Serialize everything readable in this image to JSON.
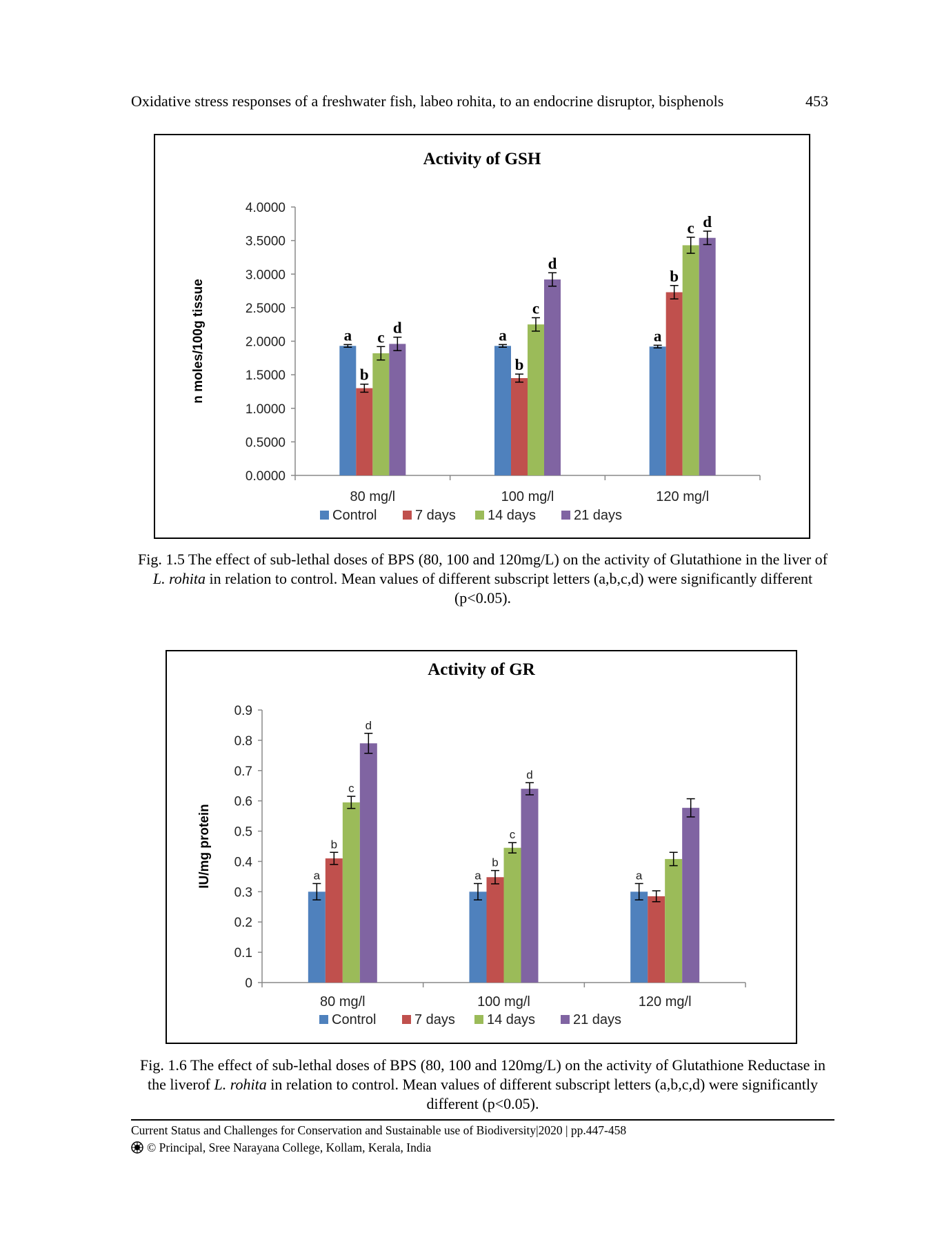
{
  "header": {
    "running_title": "Oxidative stress responses of a freshwater fish, labeo rohita, to an endocrine disruptor, bisphenols",
    "page_number": "453"
  },
  "figures": [
    {
      "caption_parts": [
        "Fig. 1.5 The effect of sub-lethal doses of BPS (80, 100 and 120mg/L) on the activity of Glutathione in the liver of ",
        "L. rohita",
        " in relation to control. Mean values of different subscript letters (a,b,c,d) were significantly different (p<0.05)."
      ]
    },
    {
      "caption_parts": [
        "Fig. 1.6  The effect of sub-lethal doses of BPS (80, 100 and 120mg/L) on the activity of Glutathione Reductase in the liverof ",
        "L. rohita",
        " in relation to control. Mean values of different subscript letters (a,b,c,d) were significantly different (p<0.05)."
      ]
    }
  ],
  "footer": {
    "line1": "Current Status and Challenges for Conservation and Sustainable use of Biodiversity|2020 | pp.447-458",
    "line2": "© Principal, Sree Narayana College, Kollam, Kerala, India",
    "emblem_icon": "college-emblem-icon"
  },
  "chart_data": [
    {
      "type": "bar",
      "title": "Activity of GSH",
      "xlabel": "",
      "ylabel": "n moles/100g tissue",
      "categories": [
        "80 mg/l",
        "100 mg/l",
        "120 mg/l"
      ],
      "ylim": [
        0,
        4
      ],
      "yticks": [
        "0.0000",
        "0.5000",
        "1.0000",
        "1.5000",
        "2.0000",
        "2.5000",
        "3.0000",
        "3.5000",
        "4.0000"
      ],
      "grid": false,
      "legend": "bottom",
      "series": [
        {
          "name": "Control",
          "color": "#4F81BD",
          "values": [
            1.93,
            1.93,
            1.92
          ],
          "errors": [
            0.02,
            0.02,
            0.02
          ],
          "letters": [
            "a",
            "a",
            "a"
          ]
        },
        {
          "name": "7 days",
          "color": "#C0504D",
          "values": [
            1.3,
            1.45,
            2.73
          ],
          "errors": [
            0.06,
            0.06,
            0.1
          ],
          "letters": [
            "b",
            "b",
            "b"
          ]
        },
        {
          "name": "14 days",
          "color": "#9BBB59",
          "values": [
            1.82,
            2.25,
            3.43
          ],
          "errors": [
            0.1,
            0.1,
            0.12
          ],
          "letters": [
            "c",
            "c",
            "c"
          ]
        },
        {
          "name": "21 days",
          "color": "#8064A2",
          "values": [
            1.96,
            2.92,
            3.54
          ],
          "errors": [
            0.1,
            0.1,
            0.1
          ],
          "letters": [
            "d",
            "d",
            "d"
          ]
        }
      ]
    },
    {
      "type": "bar",
      "title": "Activity of GR",
      "xlabel": "",
      "ylabel": "IU/mg protein",
      "categories": [
        "80 mg/l",
        "100 mg/l",
        "120 mg/l"
      ],
      "ylim": [
        0,
        0.9
      ],
      "yticks": [
        "0",
        "0.1",
        "0.2",
        "0.3",
        "0.4",
        "0.5",
        "0.6",
        "0.7",
        "0.8",
        "0.9"
      ],
      "grid": false,
      "legend": "bottom",
      "series": [
        {
          "name": "Control",
          "color": "#4F81BD",
          "values": [
            0.3,
            0.3,
            0.3
          ],
          "errors": [
            0.027,
            0.027,
            0.027
          ],
          "letters": [
            "a",
            "a",
            "a"
          ]
        },
        {
          "name": "7 days",
          "color": "#C0504D",
          "values": [
            0.41,
            0.348,
            0.285
          ],
          "errors": [
            0.02,
            0.022,
            0.018
          ],
          "letters": [
            "b",
            "b",
            ""
          ]
        },
        {
          "name": "14 days",
          "color": "#9BBB59",
          "values": [
            0.595,
            0.445,
            0.408
          ],
          "errors": [
            0.02,
            0.017,
            0.022
          ],
          "letters": [
            "c",
            "c",
            ""
          ]
        },
        {
          "name": "21 days",
          "color": "#8064A2",
          "values": [
            0.79,
            0.64,
            0.577
          ],
          "errors": [
            0.033,
            0.02,
            0.03
          ],
          "letters": [
            "d",
            "d",
            ""
          ]
        }
      ]
    }
  ]
}
